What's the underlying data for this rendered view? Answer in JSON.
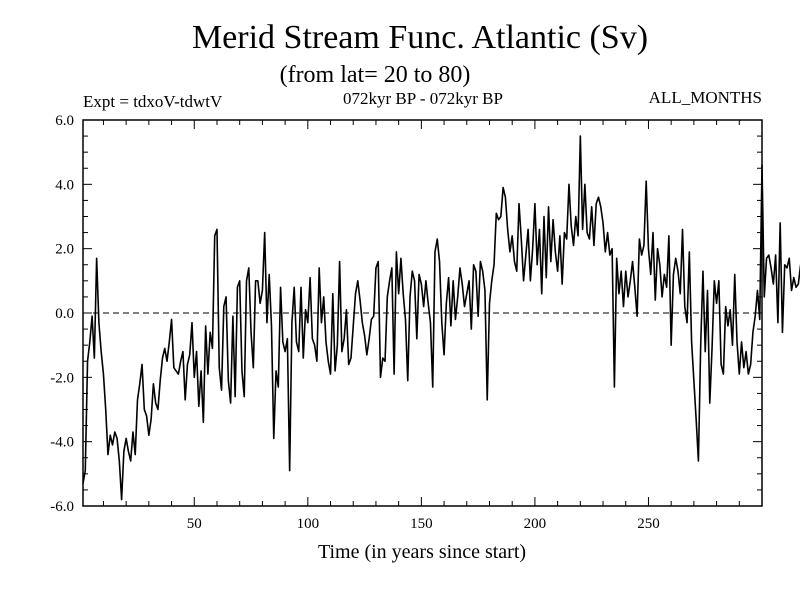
{
  "chart_data": {
    "type": "line",
    "title": "Merid Stream Func. Atlantic (Sv)",
    "subtitle": "(from lat= 20 to 80)",
    "experiment": "Expt = tdxoV-tdwtV",
    "period": "072kyr BP - 072kyr BP",
    "months": "ALL_MONTHS",
    "xlabel": "Time (in years since start)",
    "ylabel": "",
    "xlim": [
      1,
      300
    ],
    "ylim": [
      -6,
      6
    ],
    "xticks": [
      50,
      100,
      150,
      200,
      250
    ],
    "xtick_labels": [
      "50",
      "100",
      "150",
      "200",
      "250"
    ],
    "yticks": [
      -6,
      -4,
      -2,
      0,
      2,
      4,
      6
    ],
    "ytick_labels": [
      "-6.0",
      "-4.0",
      "-2.0",
      "0.0",
      "2.0",
      "4.0",
      "6.0"
    ],
    "reference_line": 0,
    "series": [
      {
        "name": "Merid Stream Func. Atlantic",
        "x_start": 1,
        "x_step": 1,
        "values": [
          -5.3,
          -4.9,
          -1.5,
          -0.9,
          -0.1,
          -1.4,
          1.7,
          -0.3,
          -1.2,
          -1.9,
          -3.0,
          -4.4,
          -3.8,
          -4.1,
          -3.7,
          -3.9,
          -4.6,
          -5.8,
          -4.3,
          -3.9,
          -4.3,
          -4.6,
          -3.7,
          -4.4,
          -2.7,
          -2.2,
          -1.6,
          -3.0,
          -3.2,
          -3.8,
          -3.3,
          -2.2,
          -2.8,
          -3.0,
          -2.1,
          -1.4,
          -1.1,
          -1.5,
          -0.9,
          -0.2,
          -1.7,
          -1.8,
          -1.9,
          -1.5,
          -1.2,
          -2.7,
          -1.6,
          -1.3,
          -0.3,
          -2.0,
          -1.2,
          -2.9,
          -1.8,
          -3.4,
          -0.4,
          -1.9,
          -0.6,
          -1.1,
          2.4,
          2.6,
          -1.7,
          -2.4,
          0.2,
          0.5,
          -2.1,
          -2.8,
          -0.1,
          -2.6,
          0.8,
          1.0,
          -1.8,
          -2.6,
          1.0,
          1.4,
          -0.6,
          -1.7,
          1.0,
          1.0,
          0.3,
          0.7,
          2.5,
          -0.3,
          1.2,
          -0.4,
          -3.9,
          -1.8,
          -2.3,
          0.8,
          -0.9,
          -1.2,
          -0.8,
          -4.9,
          -0.3,
          0.8,
          -0.9,
          -1.2,
          0.8,
          -1.4,
          0.1,
          -0.3,
          1.1,
          -0.8,
          -1.0,
          -1.5,
          1.4,
          -0.3,
          0.5,
          -0.9,
          -1.5,
          -1.9,
          0.6,
          -1.8,
          -1.0,
          1.6,
          -1.2,
          -0.8,
          0.1,
          -1.6,
          -1.4,
          -0.4,
          0.6,
          1.0,
          0.4,
          -0.3,
          -0.7,
          -1.3,
          -0.8,
          -0.2,
          -0.1,
          1.4,
          1.6,
          -2.0,
          -1.4,
          -1.5,
          0.5,
          1.0,
          1.4,
          -1.9,
          1.9,
          0.6,
          1.7,
          0.6,
          -0.2,
          -2.1,
          0.5,
          1.3,
          1.0,
          -0.8,
          1.2,
          0.9,
          0.2,
          1.0,
          0.3,
          -0.3,
          -2.3,
          1.9,
          2.3,
          1.6,
          -0.3,
          -1.3,
          0.3,
          1.1,
          -0.4,
          1.0,
          -0.2,
          0.5,
          1.4,
          0.9,
          0.2,
          0.6,
          1.0,
          -0.5,
          1.5,
          1.3,
          -0.1,
          1.6,
          1.3,
          0.7,
          -2.7,
          0.3,
          1.0,
          1.5,
          3.1,
          2.9,
          3.0,
          3.9,
          3.6,
          2.6,
          1.9,
          2.4,
          1.6,
          1.3,
          3.4,
          2.3,
          1.0,
          1.8,
          2.6,
          1.0,
          2.0,
          3.4,
          1.5,
          2.6,
          0.6,
          3.0,
          1.1,
          3.3,
          1.6,
          2.9,
          1.9,
          1.3,
          2.4,
          0.9,
          2.5,
          2.3,
          4.0,
          2.7,
          2.1,
          3.0,
          2.4,
          5.5,
          2.6,
          4.0,
          2.5,
          2.3,
          3.3,
          2.1,
          3.4,
          3.6,
          3.3,
          2.8,
          1.9,
          2.5,
          1.8,
          2.0,
          -2.3,
          1.7,
          0.6,
          1.3,
          0.2,
          1.3,
          0.5,
          1.0,
          1.6,
          0.8,
          -0.1,
          2.3,
          1.8,
          2.1,
          4.1,
          2.0,
          1.2,
          2.5,
          0.4,
          2.0,
          1.5,
          0.5,
          1.2,
          0.8,
          2.4,
          -1.0,
          1.2,
          1.7,
          1.3,
          0.6,
          2.6,
          0.2,
          -0.3,
          1.9,
          -0.9,
          -2.1,
          -3.3,
          -4.6,
          -1.0,
          1.3,
          -1.2,
          0.7,
          -2.8,
          -1.1,
          1.0,
          0.3,
          1.0,
          -1.6,
          -1.9,
          0.2,
          -0.4,
          0.1,
          -1.0,
          1.2,
          -0.9,
          -1.9,
          -0.9,
          -1.7,
          -1.2,
          -1.9,
          -1.6,
          -0.6,
          -0.1,
          0.7,
          -0.2,
          4.6,
          0.5,
          1.7,
          1.8,
          1.4,
          0.9,
          1.8,
          -0.3,
          2.8,
          -0.6,
          1.5,
          1.4,
          1.7,
          0.7,
          1.1,
          0.8,
          0.9,
          1.5
        ]
      }
    ]
  }
}
